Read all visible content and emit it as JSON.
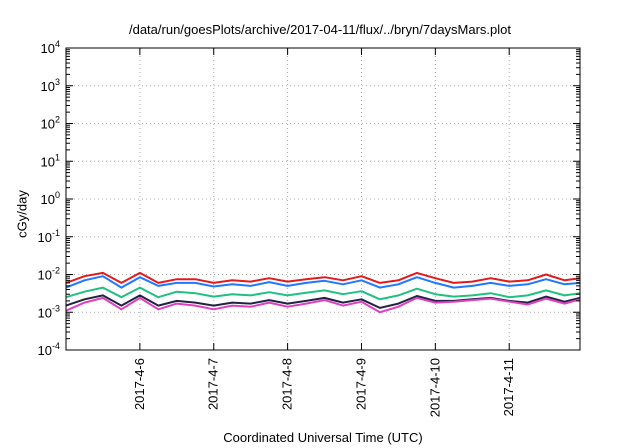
{
  "chart_data": {
    "type": "line",
    "title": "/data/run/goesPlots/archive/2017-04-11/flux/../bryn/7daysMars.plot",
    "xlabel": "Coordinated Universal Time (UTC)",
    "ylabel": "cGy/day",
    "x_range": [
      "2017-04-05T00:00",
      "2017-04-11T23:00"
    ],
    "x_ticks": [
      "2017-4-6",
      "2017-4-7",
      "2017-4-8",
      "2017-4-9",
      "2017-4-10",
      "2017-4-11"
    ],
    "y_scale": "log",
    "y_range": [
      0.0001,
      10000
    ],
    "y_ticks": [
      {
        "base": "10",
        "exp": "4"
      },
      {
        "base": "10",
        "exp": "3"
      },
      {
        "base": "10",
        "exp": "2"
      },
      {
        "base": "10",
        "exp": "1"
      },
      {
        "base": "10",
        "exp": "0"
      },
      {
        "base": "10",
        "exp": "-1"
      },
      {
        "base": "10",
        "exp": "-2"
      },
      {
        "base": "10",
        "exp": "-3"
      },
      {
        "base": "10",
        "exp": "-4"
      }
    ],
    "grid": true,
    "legend": "none",
    "x": [
      "2017-04-05T00:00",
      "2017-04-05T06:00",
      "2017-04-05T12:00",
      "2017-04-05T18:00",
      "2017-04-06T00:00",
      "2017-04-06T06:00",
      "2017-04-06T12:00",
      "2017-04-06T18:00",
      "2017-04-07T00:00",
      "2017-04-07T06:00",
      "2017-04-07T12:00",
      "2017-04-07T18:00",
      "2017-04-08T00:00",
      "2017-04-08T06:00",
      "2017-04-08T12:00",
      "2017-04-08T18:00",
      "2017-04-09T00:00",
      "2017-04-09T06:00",
      "2017-04-09T12:00",
      "2017-04-09T18:00",
      "2017-04-10T00:00",
      "2017-04-10T06:00",
      "2017-04-10T12:00",
      "2017-04-10T18:00",
      "2017-04-11T00:00",
      "2017-04-11T06:00",
      "2017-04-11T12:00",
      "2017-04-11T18:00",
      "2017-04-11T23:00"
    ],
    "series": [
      {
        "color": "#e31a1c",
        "values": [
          0.006,
          0.009,
          0.011,
          0.006,
          0.011,
          0.006,
          0.0075,
          0.0075,
          0.006,
          0.007,
          0.0065,
          0.008,
          0.0065,
          0.0075,
          0.0085,
          0.007,
          0.009,
          0.006,
          0.007,
          0.011,
          0.008,
          0.006,
          0.0065,
          0.008,
          0.0065,
          0.007,
          0.01,
          0.007,
          0.008
        ]
      },
      {
        "color": "#1f78ff",
        "values": [
          0.0045,
          0.007,
          0.009,
          0.0045,
          0.0085,
          0.005,
          0.006,
          0.006,
          0.0048,
          0.0055,
          0.005,
          0.0063,
          0.005,
          0.006,
          0.0068,
          0.0055,
          0.007,
          0.0045,
          0.0055,
          0.0085,
          0.006,
          0.0045,
          0.005,
          0.006,
          0.005,
          0.0055,
          0.0075,
          0.0055,
          0.006
        ]
      },
      {
        "color": "#20c080",
        "values": [
          0.0025,
          0.0035,
          0.0045,
          0.0025,
          0.0045,
          0.0025,
          0.0035,
          0.0032,
          0.0026,
          0.003,
          0.0028,
          0.0034,
          0.0028,
          0.0033,
          0.0038,
          0.003,
          0.0036,
          0.0022,
          0.0028,
          0.0042,
          0.003,
          0.0026,
          0.0028,
          0.0032,
          0.0025,
          0.0028,
          0.0038,
          0.0028,
          0.0032
        ]
      },
      {
        "color": "#222244",
        "values": [
          0.0015,
          0.0022,
          0.0028,
          0.0015,
          0.0028,
          0.0015,
          0.002,
          0.0018,
          0.0015,
          0.0018,
          0.0017,
          0.0021,
          0.0017,
          0.002,
          0.0024,
          0.0018,
          0.0022,
          0.0013,
          0.0017,
          0.0027,
          0.002,
          0.002,
          0.0022,
          0.0024,
          0.002,
          0.0018,
          0.0026,
          0.0019,
          0.0024
        ]
      },
      {
        "color": "#e040c0",
        "values": [
          0.0011,
          0.0018,
          0.0024,
          0.0012,
          0.0024,
          0.0012,
          0.0017,
          0.0015,
          0.0012,
          0.0015,
          0.0014,
          0.0018,
          0.0014,
          0.0017,
          0.0021,
          0.0015,
          0.0019,
          0.001,
          0.0014,
          0.0024,
          0.0018,
          0.0019,
          0.0021,
          0.0023,
          0.0019,
          0.0016,
          0.0023,
          0.0017,
          0.0022
        ]
      }
    ]
  }
}
